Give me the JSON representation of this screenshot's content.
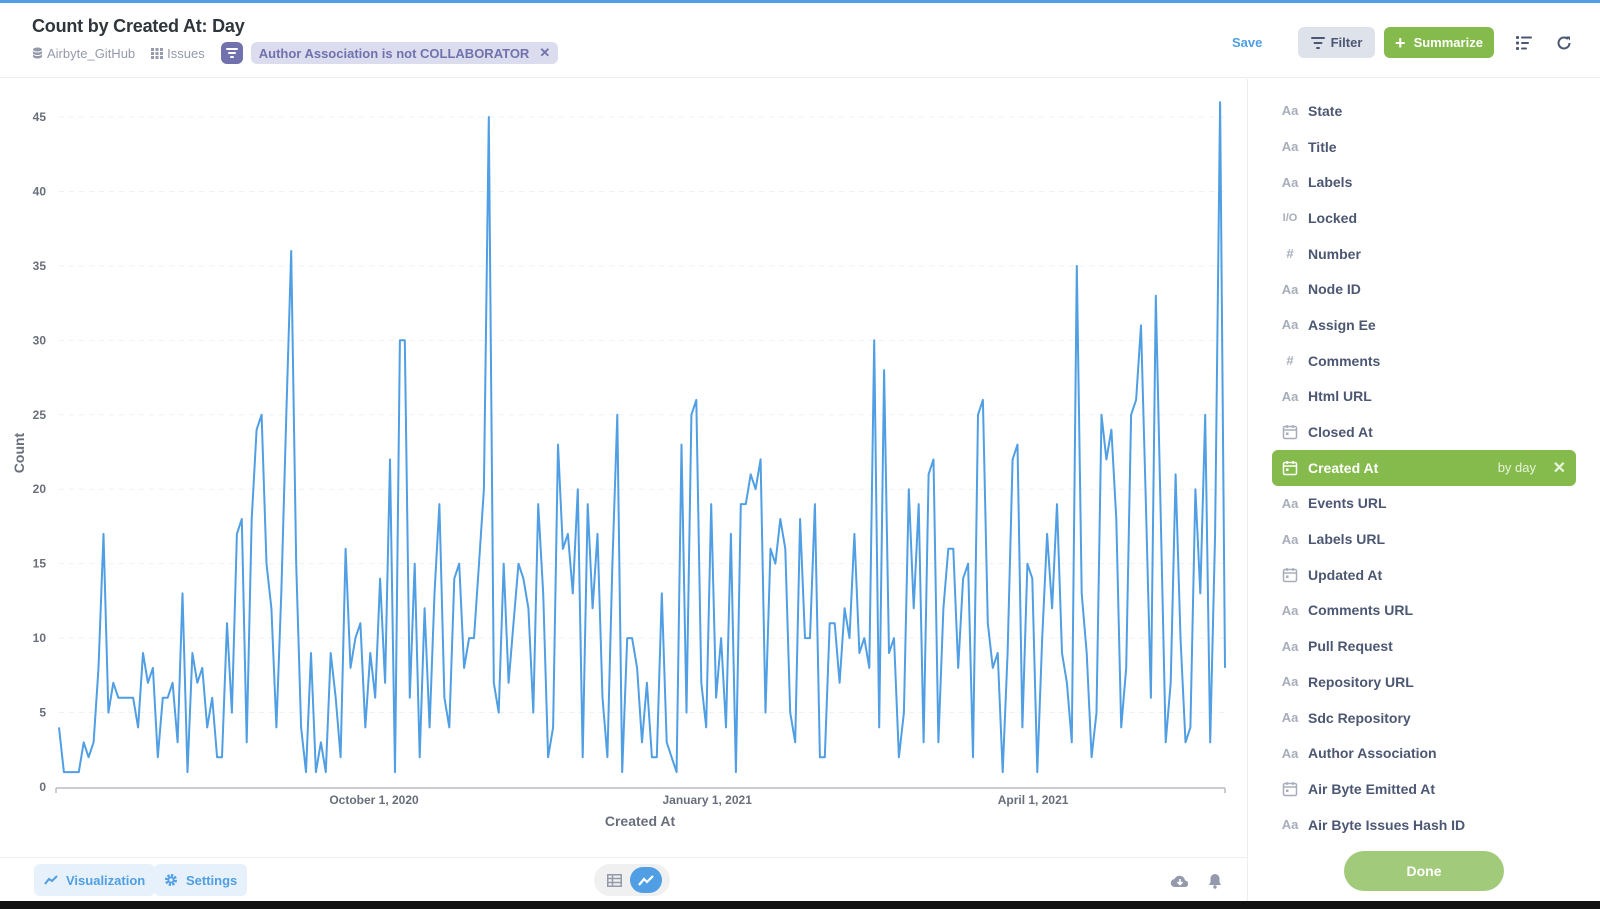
{
  "header": {
    "title": "Count by Created At: Day",
    "breadcrumb": {
      "database": "Airbyte_GitHub",
      "table": "Issues"
    },
    "filter_pill": "Author Association is not COLLABORATOR",
    "save_label": "Save",
    "filter_label": "Filter",
    "summarize_label": "Summarize"
  },
  "footer": {
    "visualization_label": "Visualization",
    "settings_label": "Settings"
  },
  "sidebar": {
    "columns": [
      {
        "label": "State",
        "type": "text"
      },
      {
        "label": "Title",
        "type": "text"
      },
      {
        "label": "Labels",
        "type": "text"
      },
      {
        "label": "Locked",
        "type": "boolean"
      },
      {
        "label": "Number",
        "type": "number"
      },
      {
        "label": "Node ID",
        "type": "text"
      },
      {
        "label": "Assign Ee",
        "type": "text"
      },
      {
        "label": "Comments",
        "type": "number"
      },
      {
        "label": "Html URL",
        "type": "text"
      },
      {
        "label": "Closed At",
        "type": "date"
      },
      {
        "label": "Created At",
        "type": "date",
        "selected": true,
        "unit": "by day"
      },
      {
        "label": "Events URL",
        "type": "text"
      },
      {
        "label": "Labels URL",
        "type": "text"
      },
      {
        "label": "Updated At",
        "type": "date"
      },
      {
        "label": "Comments URL",
        "type": "text"
      },
      {
        "label": "Pull Request",
        "type": "text"
      },
      {
        "label": "Repository URL",
        "type": "text"
      },
      {
        "label": "Sdc Repository",
        "type": "text"
      },
      {
        "label": "Author Association",
        "type": "text"
      },
      {
        "label": "Air Byte Emitted At",
        "type": "date"
      },
      {
        "label": "Air Byte Issues Hash ID",
        "type": "text"
      }
    ],
    "done_label": "Done"
  },
  "colors": {
    "brand": "#509ee3",
    "summarize": "#84bb4c",
    "filter_accent": "#7172ad",
    "line": "#509ee3"
  },
  "chart_data": {
    "type": "line",
    "xlabel": "Created At",
    "ylabel": "Count",
    "ylim": [
      0,
      45
    ],
    "yticks": [
      0,
      5,
      10,
      15,
      20,
      25,
      30,
      35,
      40,
      45
    ],
    "xticks": [
      {
        "label": "October 1, 2020",
        "date": "2020-10-01"
      },
      {
        "label": "January 1, 2021",
        "date": "2021-01-01"
      },
      {
        "label": "April 1, 2021",
        "date": "2021-04-01"
      }
    ],
    "grid": true,
    "series": [
      {
        "x_start": "2020-07-06",
        "x_end": "2021-05-24",
        "values": [
          4,
          1,
          1,
          1,
          1,
          3,
          2,
          3,
          8,
          17,
          5,
          7,
          6,
          6,
          6,
          6,
          4,
          9,
          7,
          8,
          2,
          6,
          6,
          7,
          3,
          13,
          1,
          9,
          7,
          8,
          4,
          6,
          2,
          2,
          11,
          5,
          17,
          18,
          3,
          18,
          24,
          25,
          15,
          12,
          4,
          13,
          25,
          36,
          15,
          4,
          1,
          9,
          1,
          3,
          1,
          9,
          6,
          2,
          16,
          8,
          10,
          11,
          4,
          9,
          6,
          14,
          7,
          22,
          1,
          30,
          30,
          6,
          15,
          2,
          12,
          4,
          13,
          19,
          6,
          4,
          14,
          15,
          8,
          10,
          10,
          15,
          20,
          45,
          7,
          5,
          15,
          7,
          11,
          15,
          14,
          12,
          5,
          19,
          13,
          2,
          4,
          23,
          16,
          17,
          13,
          20,
          2,
          19,
          12,
          17,
          6,
          2,
          15,
          25,
          1,
          10,
          10,
          8,
          3,
          7,
          2,
          2,
          13,
          3,
          2,
          1,
          23,
          5,
          25,
          26,
          7,
          4,
          19,
          6,
          10,
          4,
          17,
          1,
          19,
          19,
          21,
          20,
          22,
          5,
          16,
          15,
          18,
          16,
          5,
          3,
          18,
          10,
          10,
          19,
          2,
          2,
          11,
          11,
          7,
          12,
          10,
          17,
          9,
          10,
          8,
          30,
          4,
          28,
          9,
          10,
          2,
          5,
          20,
          12,
          19,
          3,
          21,
          22,
          3,
          12,
          16,
          16,
          8,
          14,
          15,
          2,
          25,
          26,
          11,
          8,
          9,
          1,
          9,
          22,
          23,
          4,
          15,
          14,
          1,
          10,
          17,
          12,
          19,
          9,
          7,
          3,
          35,
          13,
          9,
          2,
          5,
          25,
          22,
          24,
          18,
          4,
          8,
          25,
          26,
          31,
          19,
          6,
          33,
          18,
          3,
          7,
          21,
          10,
          3,
          4,
          20,
          13,
          25,
          3,
          17,
          46,
          8
        ]
      }
    ]
  }
}
